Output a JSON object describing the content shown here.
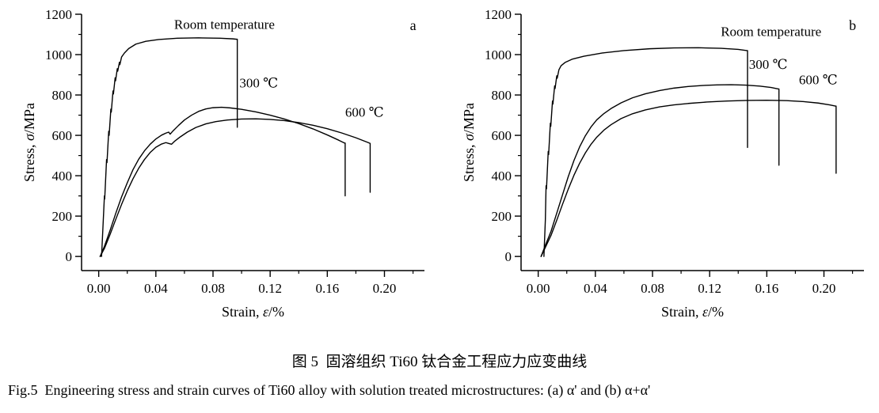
{
  "figure": {
    "caption_zh": "图 5  固溶组织 Ti60 钛合金工程应力应变曲线",
    "caption_en": "Fig.5  Engineering stress and strain curves of Ti60 alloy with solution treated microstructures: (a) α' and (b) α+α'"
  },
  "chart_data": [
    {
      "type": "line",
      "panel": "a",
      "title": "",
      "xlabel": "Strain, ε/%",
      "ylabel": "Stress, σ/MPa",
      "xlabel_parts": [
        {
          "t": "Strain, "
        },
        {
          "t": "ε",
          "italic": true
        },
        {
          "t": "/%"
        }
      ],
      "ylabel_parts": [
        {
          "t": "Stress, "
        },
        {
          "t": "σ",
          "italic": true
        },
        {
          "t": "/MPa"
        }
      ],
      "xlim": [
        -0.012,
        0.228
      ],
      "ylim": [
        -70,
        1200
      ],
      "xticks": [
        0,
        0.04,
        0.08,
        0.12,
        0.16,
        0.2
      ],
      "xtick_labels": [
        "0.00",
        "0.04",
        "0.08",
        "0.12",
        "0.16",
        "0.20"
      ],
      "yticks": [
        0,
        200,
        400,
        600,
        800,
        1000,
        1200
      ],
      "ytick_labels": [
        "0",
        "200",
        "400",
        "600",
        "800",
        "1000",
        "1200"
      ],
      "x_minor_step": 0.02,
      "y_minor_step": 100,
      "grid": false,
      "line_color": "#000000",
      "series": [
        {
          "name": "Room temperature",
          "points": [
            [
              0.002,
              0
            ],
            [
              0.003,
              150
            ],
            [
              0.004,
              300
            ],
            [
              0.0042,
              285
            ],
            [
              0.0055,
              480
            ],
            [
              0.0058,
              465
            ],
            [
              0.007,
              620
            ],
            [
              0.0073,
              600
            ],
            [
              0.0085,
              730
            ],
            [
              0.0088,
              715
            ],
            [
              0.01,
              820
            ],
            [
              0.0103,
              805
            ],
            [
              0.0115,
              885
            ],
            [
              0.0118,
              870
            ],
            [
              0.013,
              930
            ],
            [
              0.0133,
              918
            ],
            [
              0.0145,
              962
            ],
            [
              0.0148,
              950
            ],
            [
              0.016,
              988
            ],
            [
              0.018,
              1008
            ],
            [
              0.021,
              1030
            ],
            [
              0.026,
              1052
            ],
            [
              0.033,
              1066
            ],
            [
              0.042,
              1075
            ],
            [
              0.055,
              1081
            ],
            [
              0.07,
              1083
            ],
            [
              0.085,
              1081
            ],
            [
              0.094,
              1078
            ],
            [
              0.0965,
              1076
            ],
            [
              0.097,
              1076
            ],
            [
              0.097,
              640
            ]
          ]
        },
        {
          "name": "300 ℃",
          "points": [
            [
              0.001,
              0
            ],
            [
              0.004,
              50
            ],
            [
              0.008,
              130
            ],
            [
              0.012,
              215
            ],
            [
              0.016,
              295
            ],
            [
              0.02,
              365
            ],
            [
              0.024,
              430
            ],
            [
              0.028,
              482
            ],
            [
              0.032,
              523
            ],
            [
              0.036,
              556
            ],
            [
              0.04,
              582
            ],
            [
              0.044,
              601
            ],
            [
              0.047,
              611
            ],
            [
              0.049,
              616
            ],
            [
              0.05,
              606
            ],
            [
              0.052,
              622
            ],
            [
              0.056,
              650
            ],
            [
              0.06,
              676
            ],
            [
              0.065,
              700
            ],
            [
              0.07,
              719
            ],
            [
              0.075,
              731
            ],
            [
              0.08,
              737
            ],
            [
              0.086,
              739
            ],
            [
              0.092,
              736
            ],
            [
              0.1,
              729
            ],
            [
              0.11,
              716
            ],
            [
              0.12,
              700
            ],
            [
              0.13,
              681
            ],
            [
              0.14,
              658
            ],
            [
              0.15,
              632
            ],
            [
              0.16,
              602
            ],
            [
              0.168,
              576
            ],
            [
              0.172,
              562
            ],
            [
              0.1725,
              562
            ],
            [
              0.1725,
              300
            ]
          ]
        },
        {
          "name": "600 ℃",
          "points": [
            [
              0.001,
              0
            ],
            [
              0.004,
              40
            ],
            [
              0.008,
              110
            ],
            [
              0.012,
              185
            ],
            [
              0.016,
              258
            ],
            [
              0.02,
              325
            ],
            [
              0.024,
              385
            ],
            [
              0.028,
              437
            ],
            [
              0.032,
              480
            ],
            [
              0.036,
              515
            ],
            [
              0.04,
              541
            ],
            [
              0.044,
              557
            ],
            [
              0.047,
              564
            ],
            [
              0.049,
              560
            ],
            [
              0.051,
              556
            ],
            [
              0.053,
              570
            ],
            [
              0.057,
              592
            ],
            [
              0.062,
              616
            ],
            [
              0.068,
              639
            ],
            [
              0.075,
              657
            ],
            [
              0.082,
              668
            ],
            [
              0.09,
              676
            ],
            [
              0.1,
              681
            ],
            [
              0.11,
              682
            ],
            [
              0.12,
              679
            ],
            [
              0.13,
              673
            ],
            [
              0.14,
              663
            ],
            [
              0.15,
              650
            ],
            [
              0.16,
              633
            ],
            [
              0.17,
              612
            ],
            [
              0.18,
              588
            ],
            [
              0.188,
              566
            ],
            [
              0.19,
              560
            ],
            [
              0.19,
              318
            ]
          ]
        }
      ],
      "annotations": [
        {
          "text": "Room temperature",
          "x": 0.088,
          "y": 1128,
          "name": "room-temperature-label",
          "size": 17
        },
        {
          "text": "300 ℃",
          "x": 0.112,
          "y": 838,
          "name": "label-300c",
          "size": 17
        },
        {
          "text": "600 ℃",
          "x": 0.186,
          "y": 692,
          "name": "label-600c",
          "size": 17
        },
        {
          "text": "a",
          "x": 0.22,
          "y": 1122,
          "name": "panel-letter",
          "size": 18
        }
      ]
    },
    {
      "type": "line",
      "panel": "b",
      "title": "",
      "xlabel": "Strain, ε/%",
      "ylabel": "Stress, σ/MPa",
      "xlabel_parts": [
        {
          "t": "Strain, "
        },
        {
          "t": "ε",
          "italic": true
        },
        {
          "t": "/%"
        }
      ],
      "ylabel_parts": [
        {
          "t": "Stress, "
        },
        {
          "t": "σ",
          "italic": true
        },
        {
          "t": "/MPa"
        }
      ],
      "xlim": [
        -0.012,
        0.228
      ],
      "ylim": [
        -70,
        1200
      ],
      "xticks": [
        0,
        0.04,
        0.08,
        0.12,
        0.16,
        0.2
      ],
      "xtick_labels": [
        "0.00",
        "0.04",
        "0.08",
        "0.12",
        "0.16",
        "0.20"
      ],
      "yticks": [
        0,
        200,
        400,
        600,
        800,
        1000,
        1200
      ],
      "ytick_labels": [
        "0",
        "200",
        "400",
        "600",
        "800",
        "1000",
        "1200"
      ],
      "x_minor_step": 0.02,
      "y_minor_step": 100,
      "grid": false,
      "line_color": "#000000",
      "series": [
        {
          "name": "Room temperature",
          "points": [
            [
              0.004,
              0
            ],
            [
              0.005,
              180
            ],
            [
              0.0055,
              350
            ],
            [
              0.0058,
              335
            ],
            [
              0.007,
              520
            ],
            [
              0.0073,
              505
            ],
            [
              0.0085,
              660
            ],
            [
              0.0088,
              645
            ],
            [
              0.01,
              770
            ],
            [
              0.0103,
              755
            ],
            [
              0.0115,
              845
            ],
            [
              0.0118,
              832
            ],
            [
              0.013,
              895
            ],
            [
              0.0133,
              883
            ],
            [
              0.0145,
              925
            ],
            [
              0.016,
              945
            ],
            [
              0.019,
              962
            ],
            [
              0.024,
              978
            ],
            [
              0.032,
              992
            ],
            [
              0.045,
              1008
            ],
            [
              0.06,
              1020
            ],
            [
              0.078,
              1029
            ],
            [
              0.095,
              1033
            ],
            [
              0.112,
              1034
            ],
            [
              0.128,
              1031
            ],
            [
              0.14,
              1026
            ],
            [
              0.146,
              1020
            ],
            [
              0.1465,
              1020
            ],
            [
              0.1465,
              540
            ]
          ]
        },
        {
          "name": "300 ℃",
          "points": [
            [
              0.002,
              0
            ],
            [
              0.005,
              55
            ],
            [
              0.009,
              125
            ],
            [
              0.013,
              215
            ],
            [
              0.017,
              305
            ],
            [
              0.021,
              395
            ],
            [
              0.025,
              475
            ],
            [
              0.029,
              543
            ],
            [
              0.033,
              598
            ],
            [
              0.037,
              642
            ],
            [
              0.041,
              677
            ],
            [
              0.046,
              708
            ],
            [
              0.051,
              733
            ],
            [
              0.058,
              761
            ],
            [
              0.066,
              786
            ],
            [
              0.075,
              806
            ],
            [
              0.085,
              822
            ],
            [
              0.095,
              834
            ],
            [
              0.105,
              842
            ],
            [
              0.115,
              847
            ],
            [
              0.125,
              850
            ],
            [
              0.135,
              851
            ],
            [
              0.145,
              849
            ],
            [
              0.155,
              844
            ],
            [
              0.163,
              837
            ],
            [
              0.168,
              830
            ],
            [
              0.1685,
              830
            ],
            [
              0.1685,
              452
            ]
          ]
        },
        {
          "name": "600 ℃",
          "points": [
            [
              0.002,
              0
            ],
            [
              0.005,
              45
            ],
            [
              0.009,
              105
            ],
            [
              0.013,
              180
            ],
            [
              0.017,
              258
            ],
            [
              0.021,
              333
            ],
            [
              0.025,
              402
            ],
            [
              0.029,
              462
            ],
            [
              0.033,
              513
            ],
            [
              0.037,
              556
            ],
            [
              0.041,
              591
            ],
            [
              0.046,
              626
            ],
            [
              0.051,
              653
            ],
            [
              0.058,
              683
            ],
            [
              0.066,
              707
            ],
            [
              0.075,
              726
            ],
            [
              0.085,
              741
            ],
            [
              0.095,
              751
            ],
            [
              0.105,
              758
            ],
            [
              0.118,
              765
            ],
            [
              0.132,
              770
            ],
            [
              0.146,
              773
            ],
            [
              0.16,
              774
            ],
            [
              0.174,
              772
            ],
            [
              0.186,
              767
            ],
            [
              0.196,
              760
            ],
            [
              0.204,
              751
            ],
            [
              0.208,
              745
            ],
            [
              0.2085,
              745
            ],
            [
              0.2085,
              412
            ]
          ]
        }
      ],
      "annotations": [
        {
          "text": "Room temperature",
          "x": 0.163,
          "y": 1092,
          "name": "room-temperature-label",
          "size": 17
        },
        {
          "text": "300 ℃",
          "x": 0.161,
          "y": 930,
          "name": "label-300c",
          "size": 17
        },
        {
          "text": "600 ℃",
          "x": 0.196,
          "y": 854,
          "name": "label-600c",
          "size": 17
        },
        {
          "text": "b",
          "x": 0.22,
          "y": 1122,
          "name": "panel-letter",
          "size": 18
        }
      ]
    }
  ]
}
